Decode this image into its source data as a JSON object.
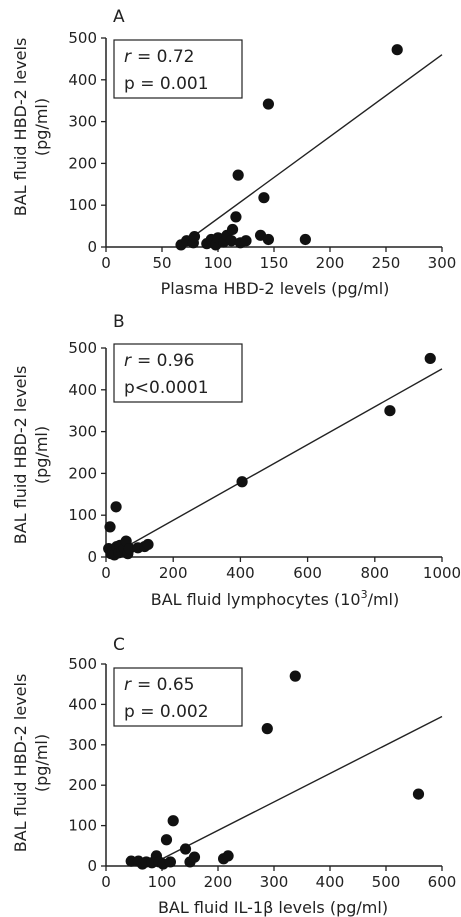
{
  "chart_data": [
    {
      "type": "scatter",
      "panel_label": "A",
      "xlabel": "Plasma HBD-2 levels (pg/ml)",
      "ylabel_line1": "BAL fluid HBD-2 levels",
      "ylabel_line2": "(pg/ml)",
      "xlim": [
        0,
        300
      ],
      "ylim": [
        0,
        500
      ],
      "xticks": [
        0,
        50,
        100,
        150,
        200,
        250,
        300
      ],
      "yticks": [
        0,
        100,
        200,
        300,
        400,
        500
      ],
      "grid": false,
      "annotation": {
        "r_symbol": "r",
        "r_value": "= 0.72",
        "p_text": "p = 0.001"
      },
      "regression": {
        "x0": 65,
        "y0": 0,
        "x1": 300,
        "y1": 460
      },
      "points": [
        {
          "x": 67,
          "y": 5
        },
        {
          "x": 72,
          "y": 15
        },
        {
          "x": 78,
          "y": 10
        },
        {
          "x": 79,
          "y": 25
        },
        {
          "x": 90,
          "y": 8
        },
        {
          "x": 94,
          "y": 18
        },
        {
          "x": 98,
          "y": 5
        },
        {
          "x": 100,
          "y": 22
        },
        {
          "x": 105,
          "y": 12
        },
        {
          "x": 108,
          "y": 28
        },
        {
          "x": 112,
          "y": 15
        },
        {
          "x": 113,
          "y": 42
        },
        {
          "x": 116,
          "y": 72
        },
        {
          "x": 118,
          "y": 172
        },
        {
          "x": 120,
          "y": 10
        },
        {
          "x": 125,
          "y": 15
        },
        {
          "x": 138,
          "y": 28
        },
        {
          "x": 141,
          "y": 118
        },
        {
          "x": 145,
          "y": 18
        },
        {
          "x": 145,
          "y": 342
        },
        {
          "x": 178,
          "y": 18
        },
        {
          "x": 260,
          "y": 472
        }
      ]
    },
    {
      "type": "scatter",
      "panel_label": "B",
      "xlabel": "BAL fluid lymphocytes (10",
      "xlabel_sup": "3",
      "xlabel_end": "/ml)",
      "ylabel_line1": "BAL fluid HBD-2 levels",
      "ylabel_line2": "(pg/ml)",
      "xlim": [
        0,
        1000
      ],
      "ylim": [
        0,
        500
      ],
      "xticks": [
        0,
        200,
        400,
        600,
        800,
        1000
      ],
      "yticks": [
        0,
        100,
        200,
        300,
        400,
        500
      ],
      "grid": false,
      "annotation": {
        "r_symbol": "r",
        "r_value": "= 0.96",
        "p_text": "p<0.0001"
      },
      "regression": {
        "x0": 50,
        "y0": 20,
        "x1": 1000,
        "y1": 450
      },
      "points": [
        {
          "x": 8,
          "y": 20
        },
        {
          "x": 12,
          "y": 72
        },
        {
          "x": 15,
          "y": 8
        },
        {
          "x": 20,
          "y": 15
        },
        {
          "x": 25,
          "y": 5
        },
        {
          "x": 30,
          "y": 120
        },
        {
          "x": 32,
          "y": 25
        },
        {
          "x": 38,
          "y": 10
        },
        {
          "x": 42,
          "y": 28
        },
        {
          "x": 48,
          "y": 15
        },
        {
          "x": 55,
          "y": 20
        },
        {
          "x": 60,
          "y": 38
        },
        {
          "x": 65,
          "y": 8
        },
        {
          "x": 70,
          "y": 20
        },
        {
          "x": 95,
          "y": 22
        },
        {
          "x": 115,
          "y": 25
        },
        {
          "x": 125,
          "y": 30
        },
        {
          "x": 405,
          "y": 180
        },
        {
          "x": 845,
          "y": 350
        },
        {
          "x": 965,
          "y": 475
        }
      ]
    },
    {
      "type": "scatter",
      "panel_label": "C",
      "xlabel": "BAL fluid IL-1β levels (pg/ml)",
      "ylabel_line1": "BAL fluid HBD-2 levels",
      "ylabel_line2": "(pg/ml)",
      "xlim": [
        0,
        600
      ],
      "ylim": [
        0,
        500
      ],
      "xticks": [
        0,
        100,
        200,
        300,
        400,
        500,
        600
      ],
      "yticks": [
        0,
        100,
        200,
        300,
        400,
        500
      ],
      "grid": false,
      "annotation": {
        "r_symbol": "r",
        "r_value": "= 0.65",
        "p_text": "p = 0.002"
      },
      "regression": {
        "x0": 75,
        "y0": 0,
        "x1": 600,
        "y1": 370
      },
      "points": [
        {
          "x": 45,
          "y": 12
        },
        {
          "x": 58,
          "y": 12
        },
        {
          "x": 65,
          "y": 5
        },
        {
          "x": 72,
          "y": 10
        },
        {
          "x": 82,
          "y": 8
        },
        {
          "x": 90,
          "y": 25
        },
        {
          "x": 95,
          "y": 10
        },
        {
          "x": 102,
          "y": 5
        },
        {
          "x": 108,
          "y": 65
        },
        {
          "x": 115,
          "y": 10
        },
        {
          "x": 120,
          "y": 112
        },
        {
          "x": 142,
          "y": 42
        },
        {
          "x": 150,
          "y": 10
        },
        {
          "x": 158,
          "y": 22
        },
        {
          "x": 210,
          "y": 18
        },
        {
          "x": 218,
          "y": 25
        },
        {
          "x": 288,
          "y": 340
        },
        {
          "x": 338,
          "y": 470
        },
        {
          "x": 558,
          "y": 178
        }
      ]
    }
  ]
}
